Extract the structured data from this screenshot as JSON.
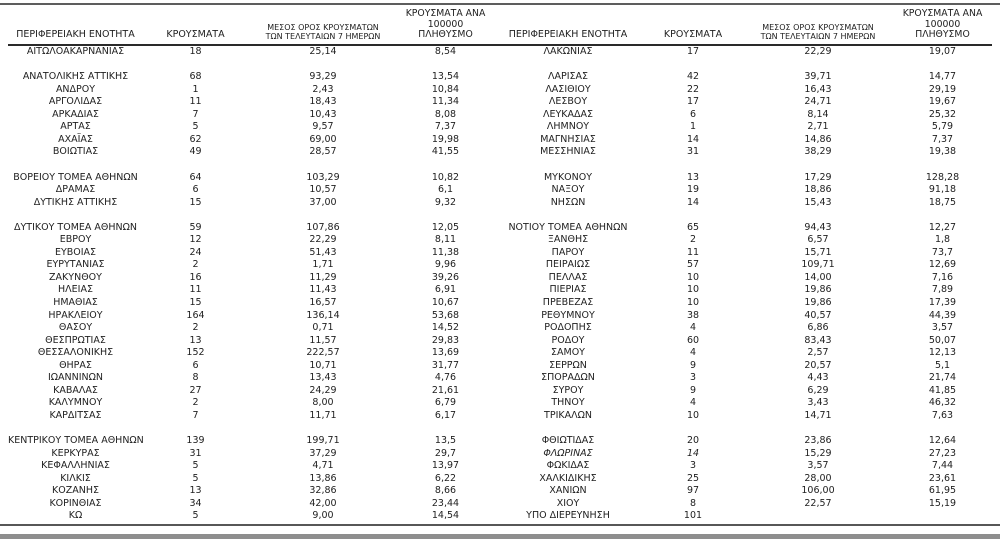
{
  "colors": {
    "text": "#212121",
    "rule_dark": "#575757",
    "rule_bar": "#8e8e8e"
  },
  "table": {
    "headers": {
      "region_label": "ΠΕΡΙΦΕΡΕΙΑΚΗ ΕΝΟΤΗΤΑ",
      "cases_label": "ΚΡΟΥΣΜΑΤΑ",
      "avg7_lines": [
        "ΜΕΣΟΣ ΟΡΟΣ ΚΡΟΥΣΜΑΤΩΝ",
        "ΤΩΝ ΤΕΛΕΥΤΑΙΩΝ 7 ΗΜΕΡΩΝ"
      ],
      "per100k_lines": [
        "ΚΡΟΥΣΜΑΤΑ ΑΝΑ 100000",
        "ΠΛΗΘΥΣΜΟ"
      ]
    },
    "left_rows": [
      {
        "region": "ΑΙΤΩΛΟΑΚΑΡΝΑΝΙΑΣ",
        "cases": "18",
        "avg7": "25,14",
        "per100k": "8,54"
      },
      null,
      {
        "region": "ΑΝΑΤΟΛΙΚΗΣ ΑΤΤΙΚΗΣ",
        "cases": "68",
        "avg7": "93,29",
        "per100k": "13,54"
      },
      {
        "region": "ΑΝΔΡΟΥ",
        "cases": "1",
        "avg7": "2,43",
        "per100k": "10,84"
      },
      {
        "region": "ΑΡΓΟΛΙΔΑΣ",
        "cases": "11",
        "avg7": "18,43",
        "per100k": "11,34"
      },
      {
        "region": "ΑΡΚΑΔΙΑΣ",
        "cases": "7",
        "avg7": "10,43",
        "per100k": "8,08"
      },
      {
        "region": "ΑΡΤΑΣ",
        "cases": "5",
        "avg7": "9,57",
        "per100k": "7,37"
      },
      {
        "region": "ΑΧΑΪΑΣ",
        "cases": "62",
        "avg7": "69,00",
        "per100k": "19,98"
      },
      {
        "region": "ΒΟΙΩΤΙΑΣ",
        "cases": "49",
        "avg7": "28,57",
        "per100k": "41,55"
      },
      null,
      {
        "region": "ΒΟΡΕΙΟΥ ΤΟΜΕΑ ΑΘΗΝΩΝ",
        "cases": "64",
        "avg7": "103,29",
        "per100k": "10,82"
      },
      {
        "region": "ΔΡΑΜΑΣ",
        "cases": "6",
        "avg7": "10,57",
        "per100k": "6,1"
      },
      {
        "region": "ΔΥΤΙΚΗΣ ΑΤΤΙΚΗΣ",
        "cases": "15",
        "avg7": "37,00",
        "per100k": "9,32"
      },
      null,
      {
        "region": "ΔΥΤΙΚΟΥ ΤΟΜΕΑ ΑΘΗΝΩΝ",
        "cases": "59",
        "avg7": "107,86",
        "per100k": "12,05"
      },
      {
        "region": "ΕΒΡΟΥ",
        "cases": "12",
        "avg7": "22,29",
        "per100k": "8,11"
      },
      {
        "region": "ΕΥΒΟΙΑΣ",
        "cases": "24",
        "avg7": "51,43",
        "per100k": "11,38"
      },
      {
        "region": "ΕΥΡΥΤΑΝΙΑΣ",
        "cases": "2",
        "avg7": "1,71",
        "per100k": "9,96"
      },
      {
        "region": "ΖΑΚΥΝΘΟΥ",
        "cases": "16",
        "avg7": "11,29",
        "per100k": "39,26"
      },
      {
        "region": "ΗΛΕΙΑΣ",
        "cases": "11",
        "avg7": "11,43",
        "per100k": "6,91"
      },
      {
        "region": "ΗΜΑΘΙΑΣ",
        "cases": "15",
        "avg7": "16,57",
        "per100k": "10,67"
      },
      {
        "region": "ΗΡΑΚΛΕΙΟΥ",
        "cases": "164",
        "avg7": "136,14",
        "per100k": "53,68"
      },
      {
        "region": "ΘΑΣΟΥ",
        "cases": "2",
        "avg7": "0,71",
        "per100k": "14,52"
      },
      {
        "region": "ΘΕΣΠΡΩΤΙΑΣ",
        "cases": "13",
        "avg7": "11,57",
        "per100k": "29,83"
      },
      {
        "region": "ΘΕΣΣΑΛΟΝΙΚΗΣ",
        "cases": "152",
        "avg7": "222,57",
        "per100k": "13,69"
      },
      {
        "region": "ΘΗΡΑΣ",
        "cases": "6",
        "avg7": "10,71",
        "per100k": "31,77"
      },
      {
        "region": "ΙΩΑΝΝΙΝΩΝ",
        "cases": "8",
        "avg7": "13,43",
        "per100k": "4,76"
      },
      {
        "region": "ΚΑΒΑΛΑΣ",
        "cases": "27",
        "avg7": "24,29",
        "per100k": "21,61"
      },
      {
        "region": "ΚΑΛΥΜΝΟΥ",
        "cases": "2",
        "avg7": "8,00",
        "per100k": "6,79"
      },
      {
        "region": "ΚΑΡΔΙΤΣΑΣ",
        "cases": "7",
        "avg7": "11,71",
        "per100k": "6,17"
      },
      null,
      {
        "region": "ΚΕΝΤΡΙΚΟΥ ΤΟΜΕΑ ΑΘΗΝΩΝ",
        "cases": "139",
        "avg7": "199,71",
        "per100k": "13,5"
      },
      {
        "region": "ΚΕΡΚΥΡΑΣ",
        "cases": "31",
        "avg7": "37,29",
        "per100k": "29,7"
      },
      {
        "region": "ΚΕΦΑΛΛΗΝΙΑΣ",
        "cases": "5",
        "avg7": "4,71",
        "per100k": "13,97"
      },
      {
        "region": "ΚΙΛΚΙΣ",
        "cases": "5",
        "avg7": "13,86",
        "per100k": "6,22"
      },
      {
        "region": "ΚΟΖΑΝΗΣ",
        "cases": "13",
        "avg7": "32,86",
        "per100k": "8,66"
      },
      {
        "region": "ΚΟΡΙΝΘΙΑΣ",
        "cases": "34",
        "avg7": "42,00",
        "per100k": "23,44"
      },
      {
        "region": "ΚΩ",
        "cases": "5",
        "avg7": "9,00",
        "per100k": "14,54"
      }
    ],
    "right_rows": [
      {
        "region": "ΛΑΚΩΝΙΑΣ",
        "cases": "17",
        "avg7": "22,29",
        "per100k": "19,07"
      },
      null,
      {
        "region": "ΛΑΡΙΣΑΣ",
        "cases": "42",
        "avg7": "39,71",
        "per100k": "14,77"
      },
      {
        "region": "ΛΑΣΙΘΙΟΥ",
        "cases": "22",
        "avg7": "16,43",
        "per100k": "29,19"
      },
      {
        "region": "ΛΕΣΒΟΥ",
        "cases": "17",
        "avg7": "24,71",
        "per100k": "19,67"
      },
      {
        "region": "ΛΕΥΚΑΔΑΣ",
        "cases": "6",
        "avg7": "8,14",
        "per100k": "25,32"
      },
      {
        "region": "ΛΗΜΝΟΥ",
        "cases": "1",
        "avg7": "2,71",
        "per100k": "5,79"
      },
      {
        "region": "ΜΑΓΝΗΣΙΑΣ",
        "cases": "14",
        "avg7": "14,86",
        "per100k": "7,37"
      },
      {
        "region": "ΜΕΣΣΗΝΙΑΣ",
        "cases": "31",
        "avg7": "38,29",
        "per100k": "19,38"
      },
      null,
      {
        "region": "ΜΥΚΟΝΟΥ",
        "cases": "13",
        "avg7": "17,29",
        "per100k": "128,28"
      },
      {
        "region": "ΝΑΞΟΥ",
        "cases": "19",
        "avg7": "18,86",
        "per100k": "91,18"
      },
      {
        "region": "ΝΗΣΩΝ",
        "cases": "14",
        "avg7": "15,43",
        "per100k": "18,75"
      },
      null,
      {
        "region": "ΝΟΤΙΟΥ ΤΟΜΕΑ ΑΘΗΝΩΝ",
        "cases": "65",
        "avg7": "94,43",
        "per100k": "12,27"
      },
      {
        "region": "ΞΑΝΘΗΣ",
        "cases": "2",
        "avg7": "6,57",
        "per100k": "1,8"
      },
      {
        "region": "ΠΑΡΟΥ",
        "cases": "11",
        "avg7": "15,71",
        "per100k": "73,7"
      },
      {
        "region": "ΠΕΙΡΑΙΩΣ",
        "cases": "57",
        "avg7": "109,71",
        "per100k": "12,69"
      },
      {
        "region": "ΠΕΛΛΑΣ",
        "cases": "10",
        "avg7": "14,00",
        "per100k": "7,16"
      },
      {
        "region": "ΠΙΕΡΙΑΣ",
        "cases": "10",
        "avg7": "19,86",
        "per100k": "7,89"
      },
      {
        "region": "ΠΡΕΒΕΖΑΣ",
        "cases": "10",
        "avg7": "19,86",
        "per100k": "17,39"
      },
      {
        "region": "ΡΕΘΥΜΝΟΥ",
        "cases": "38",
        "avg7": "40,57",
        "per100k": "44,39"
      },
      {
        "region": "ΡΟΔΟΠΗΣ",
        "cases": "4",
        "avg7": "6,86",
        "per100k": "3,57"
      },
      {
        "region": "ΡΟΔΟΥ",
        "cases": "60",
        "avg7": "83,43",
        "per100k": "50,07"
      },
      {
        "region": "ΣΑΜΟΥ",
        "cases": "4",
        "avg7": "2,57",
        "per100k": "12,13"
      },
      {
        "region": "ΣΕΡΡΩΝ",
        "cases": "9",
        "avg7": "20,57",
        "per100k": "5,1"
      },
      {
        "region": "ΣΠΟΡΑΔΩΝ",
        "cases": "3",
        "avg7": "4,43",
        "per100k": "21,74"
      },
      {
        "region": "ΣΥΡΟΥ",
        "cases": "9",
        "avg7": "6,29",
        "per100k": "41,85"
      },
      {
        "region": "ΤΗΝΟΥ",
        "cases": "4",
        "avg7": "3,43",
        "per100k": "46,32"
      },
      {
        "region": "ΤΡΙΚΑΛΩΝ",
        "cases": "10",
        "avg7": "14,71",
        "per100k": "7,63"
      },
      null,
      {
        "region": "ΦΘΙΩΤΙΔΑΣ",
        "cases": "20",
        "avg7": "23,86",
        "per100k": "12,64"
      },
      {
        "region": "ΦΛΩΡΙΝΑΣ",
        "cases": "14",
        "avg7": "15,29",
        "per100k": "27,23",
        "italic": true
      },
      {
        "region": "ΦΩΚΙΔΑΣ",
        "cases": "3",
        "avg7": "3,57",
        "per100k": "7,44"
      },
      {
        "region": "ΧΑΛΚΙΔΙΚΗΣ",
        "cases": "25",
        "avg7": "28,00",
        "per100k": "23,61"
      },
      {
        "region": "ΧΑΝΙΩΝ",
        "cases": "97",
        "avg7": "106,00",
        "per100k": "61,95"
      },
      {
        "region": "ΧΙΟΥ",
        "cases": "8",
        "avg7": "22,57",
        "per100k": "15,19"
      },
      {
        "region": "ΥΠΟ ΔΙΕΡΕΥΝΗΣΗ",
        "cases": "101",
        "avg7": "",
        "per100k": ""
      }
    ]
  }
}
